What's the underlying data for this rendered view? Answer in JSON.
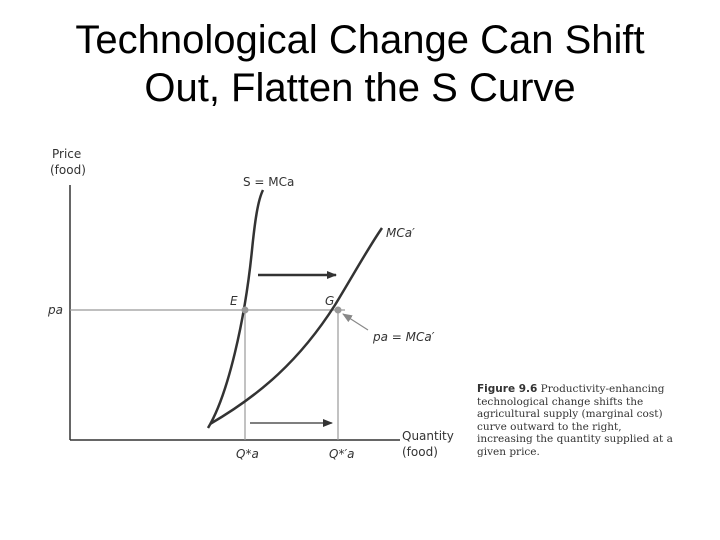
{
  "title": {
    "line1": "Technological Change Can Shift",
    "line2": "Out, Flatten the S Curve"
  },
  "diagram": {
    "y_axis_label_line1": "Price",
    "y_axis_label_line2": "(food)",
    "x_axis_label_line1": "Quantity",
    "x_axis_label_line2": "(food)",
    "supply_curve_label": "S = MCa",
    "new_supply_curve_label": "MCa′",
    "price_line_label": "pa",
    "point_e_label": "E",
    "point_g_label": "G",
    "callout_label": "pa = MCa′",
    "q_star_label": "Q*a",
    "q_star_prime_label": "Q*′a"
  },
  "caption": {
    "figure_label": "Figure 9.6",
    "text": "Productivity-enhancing technological change shifts the agricultural supply (marginal cost) curve outward to the right, increasing the quantity supplied at a given price."
  },
  "colors": {
    "curve": "#333333",
    "guide_line": "#999999",
    "point": "#999999",
    "text": "#333333"
  }
}
